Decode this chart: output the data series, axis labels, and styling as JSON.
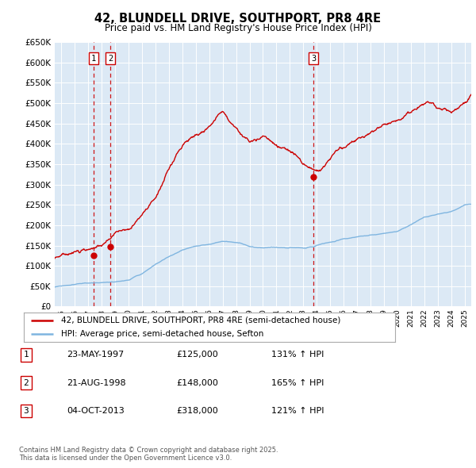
{
  "title": "42, BLUNDELL DRIVE, SOUTHPORT, PR8 4RE",
  "subtitle": "Price paid vs. HM Land Registry's House Price Index (HPI)",
  "legend_line1": "42, BLUNDELL DRIVE, SOUTHPORT, PR8 4RE (semi-detached house)",
  "legend_line2": "HPI: Average price, semi-detached house, Sefton",
  "sales": [
    {
      "num": 1,
      "date": "23-MAY-1997",
      "price": 125000,
      "hpi_pct": "131% ↑ HPI",
      "year": 1997.38
    },
    {
      "num": 2,
      "date": "21-AUG-1998",
      "price": 148000,
      "hpi_pct": "165% ↑ HPI",
      "year": 1998.63
    },
    {
      "num": 3,
      "date": "04-OCT-2013",
      "price": 318000,
      "hpi_pct": "121% ↑ HPI",
      "year": 2013.75
    }
  ],
  "footnote1": "Contains HM Land Registry data © Crown copyright and database right 2025.",
  "footnote2": "This data is licensed under the Open Government Licence v3.0.",
  "bg_color": "#dce9f5",
  "red_color": "#cc0000",
  "blue_color": "#7fb5e0",
  "dashed_color": "#cc0000",
  "ylim_max": 650000,
  "xlim_start": 1994.5,
  "xlim_end": 2025.5
}
